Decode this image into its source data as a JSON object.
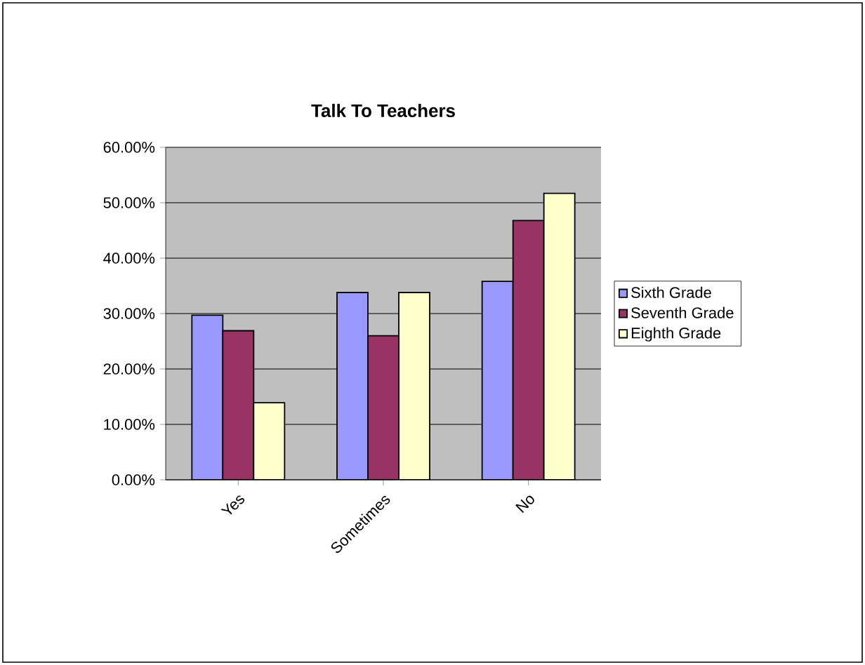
{
  "chart_data": {
    "type": "bar",
    "title": "Talk To Teachers",
    "categories": [
      "Yes",
      "Sometimes",
      "No"
    ],
    "series": [
      {
        "name": "Sixth Grade",
        "color": "#9999ff",
        "values": [
          29.7,
          33.8,
          35.8
        ]
      },
      {
        "name": "Seventh Grade",
        "color": "#993366",
        "values": [
          26.9,
          26.0,
          46.8
        ]
      },
      {
        "name": "Eighth Grade",
        "color": "#ffffcc",
        "values": [
          13.9,
          33.8,
          51.7
        ]
      }
    ],
    "ylim": [
      0,
      60
    ],
    "yticks": [
      {
        "value": 0,
        "label": "0.00%"
      },
      {
        "value": 10,
        "label": "10.00%"
      },
      {
        "value": 20,
        "label": "20.00%"
      },
      {
        "value": 30,
        "label": "30.00%"
      },
      {
        "value": 40,
        "label": "40.00%"
      },
      {
        "value": 50,
        "label": "50.00%"
      },
      {
        "value": 60,
        "label": "60.00%"
      }
    ],
    "grid": "y",
    "legend": "right"
  }
}
